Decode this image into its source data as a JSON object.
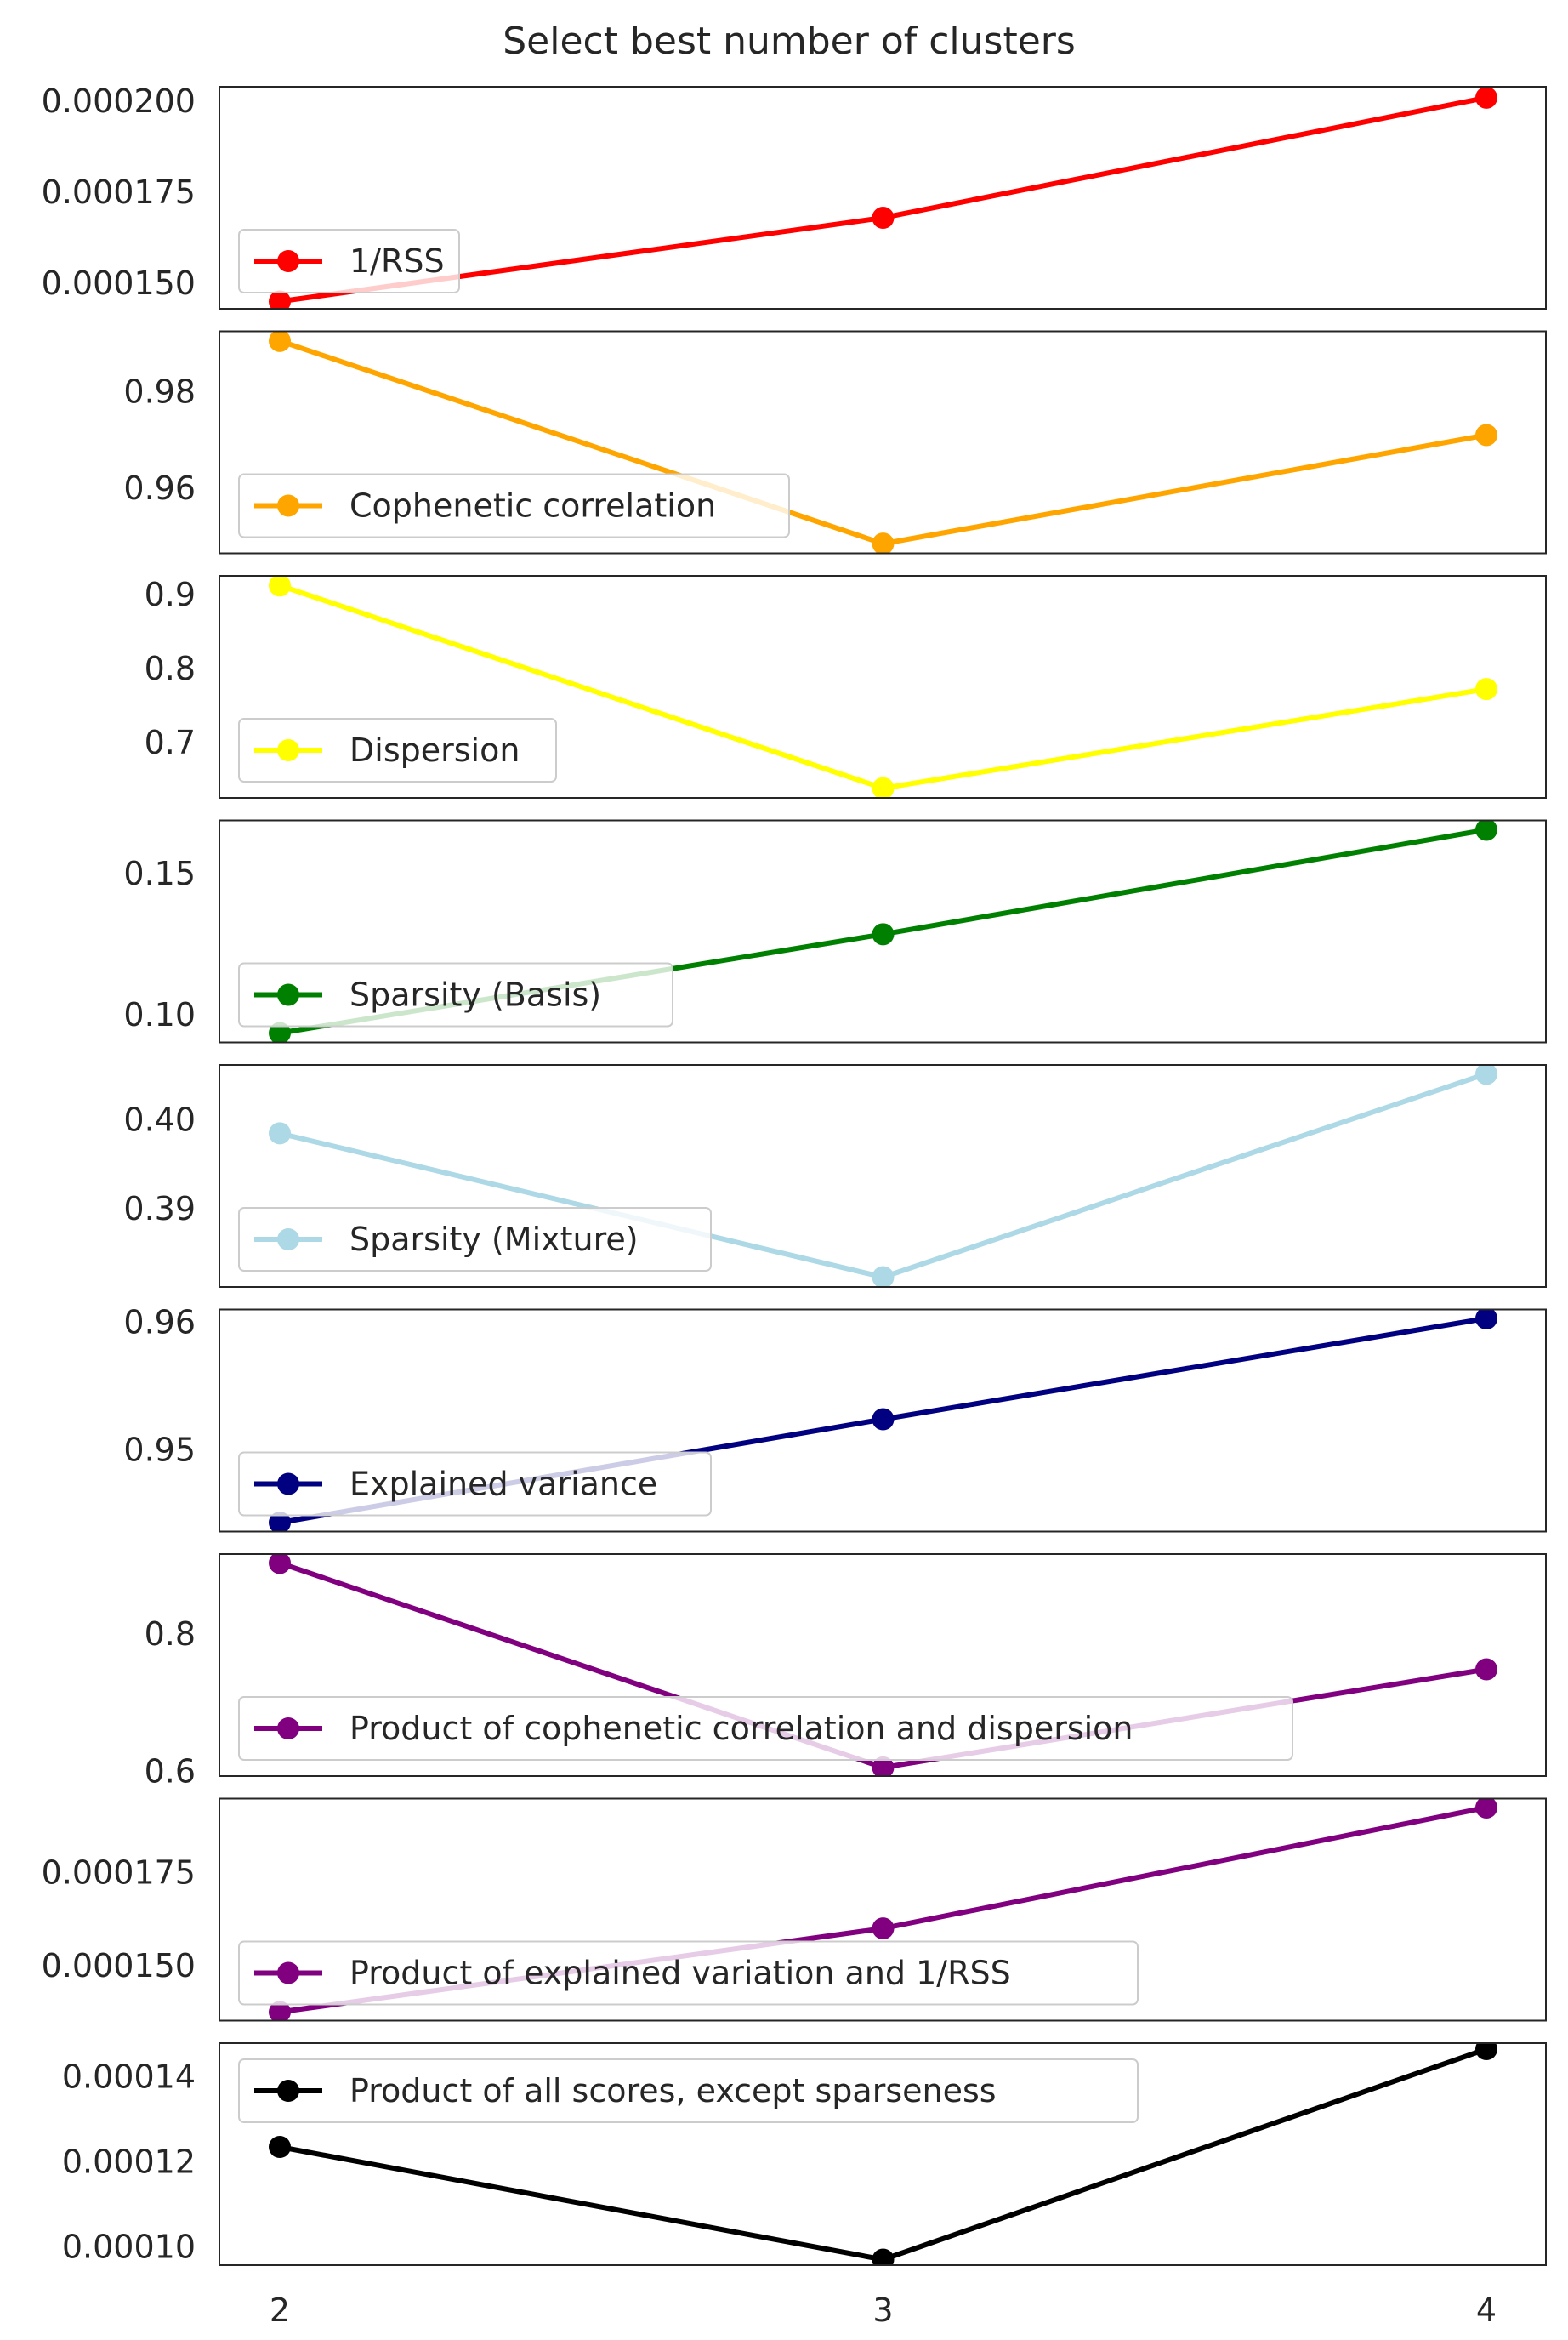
{
  "chart_data": {
    "type": "line",
    "title": "Select best number of clusters",
    "x": [
      2,
      3,
      4
    ],
    "x_tick_labels": [
      "2",
      "3",
      "4"
    ],
    "panels": [
      {
        "name": "1/RSS",
        "color": "#ff0000",
        "values": [
          0.000145,
          0.000168,
          0.000201
        ],
        "ylim": [
          0.000143,
          0.000204
        ],
        "yticks": [
          0.00015,
          0.000175,
          0.0002
        ],
        "ytick_labels": [
          "0.000150",
          "0.000175",
          "0.000200"
        ],
        "legend_loc": "lower-left"
      },
      {
        "name": "Cophenetic correlation",
        "color": "#ffa500",
        "values": [
          0.9905,
          0.9485,
          0.971
        ],
        "ylim": [
          0.9465,
          0.9925
        ],
        "yticks": [
          0.96,
          0.98
        ],
        "ytick_labels": [
          "0.96",
          "0.98"
        ],
        "legend_loc": "lower-left"
      },
      {
        "name": "Dispersion",
        "color": "#ffff00",
        "values": [
          0.912,
          0.638,
          0.772
        ],
        "ylim": [
          0.625,
          0.925
        ],
        "yticks": [
          0.7,
          0.8,
          0.9
        ],
        "ytick_labels": [
          "0.7",
          "0.8",
          "0.9"
        ],
        "legend_loc": "lower-left"
      },
      {
        "name": "Sparsity (Basis)",
        "color": "#008000",
        "values": [
          0.0935,
          0.1285,
          0.1655
        ],
        "ylim": [
          0.0902,
          0.1688
        ],
        "yticks": [
          0.1,
          0.15
        ],
        "ytick_labels": [
          "0.10",
          "0.15"
        ],
        "legend_loc": "lower-left"
      },
      {
        "name": "Sparsity (Mixture)",
        "color": "#add8e6",
        "values": [
          0.3985,
          0.3823,
          0.4052
        ],
        "ylim": [
          0.3812,
          0.4062
        ],
        "yticks": [
          0.39,
          0.4
        ],
        "ytick_labels": [
          "0.39",
          "0.40"
        ],
        "legend_loc": "lower-left"
      },
      {
        "name": "Explained variance",
        "color": "#000080",
        "values": [
          0.9443,
          0.9524,
          0.9603
        ],
        "ylim": [
          0.9436,
          0.961
        ],
        "yticks": [
          0.95,
          0.96
        ],
        "ytick_labels": [
          "0.95",
          "0.96"
        ],
        "legend_loc": "lower-left"
      },
      {
        "name": "Product of cophenetic correlation and dispersion",
        "color": "#800080",
        "values": [
          0.9035,
          0.6055,
          0.7485
        ],
        "ylim": [
          0.593,
          0.9165
        ],
        "yticks": [
          0.6,
          0.8
        ],
        "ytick_labels": [
          "0.6",
          "0.8"
        ],
        "legend_loc": "lower-left"
      },
      {
        "name": "Product of explained variation and 1/RSS",
        "color": "#800080",
        "values": [
          0.0001375,
          0.00016,
          0.0001925
        ],
        "ylim": [
          0.0001352,
          0.0001949
        ],
        "yticks": [
          0.00015,
          0.000175
        ],
        "ytick_labels": [
          "0.000150",
          "0.000175"
        ],
        "legend_loc": "lower-left"
      },
      {
        "name": "Product of all scores, except sparseness",
        "color": "#000000",
        "values": [
          0.0001235,
          9.7e-05,
          0.0001465
        ],
        "ylim": [
          9.57e-05,
          0.0001479
        ],
        "yticks": [
          0.0001,
          0.00012,
          0.00014
        ],
        "ytick_labels": [
          "0.00010",
          "0.00012",
          "0.00014"
        ],
        "legend_loc": "upper-left"
      }
    ],
    "grid": false
  }
}
